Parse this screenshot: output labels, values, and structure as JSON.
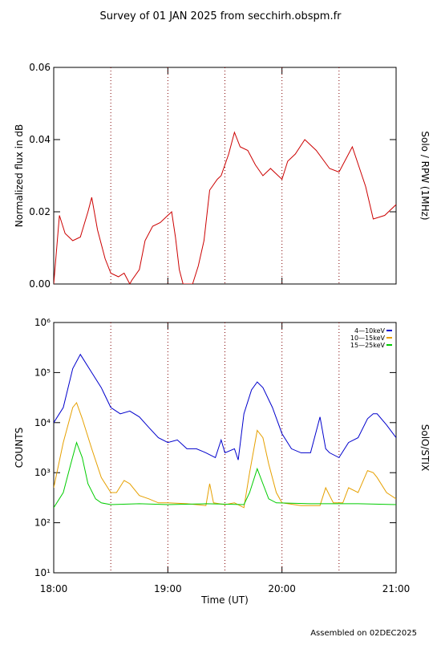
{
  "title": "Survey of 01 JAN 2025 from secchirh.obspm.fr",
  "footer": "Assembled on 02DEC2025",
  "chart_data": [
    {
      "type": "line",
      "ylabel": "Normalized flux in dB",
      "side_label": "Solo / RPW (1MHz)",
      "xlim": [
        "18:00",
        "21:00"
      ],
      "ylim": [
        0,
        0.06
      ],
      "yticks": [
        {
          "value": 0,
          "label": "0.00"
        },
        {
          "value": 0.02,
          "label": "0.02"
        },
        {
          "value": 0.04,
          "label": "0.04"
        },
        {
          "value": 0.06,
          "label": "0.06"
        }
      ],
      "vlines": [
        "18:30",
        "19:00",
        "19:30",
        "20:00",
        "20:30"
      ],
      "series": [
        {
          "color": "#cc0000",
          "x": [
            "18:00",
            "18:03",
            "18:06",
            "18:10",
            "18:14",
            "18:18",
            "18:20",
            "18:23",
            "18:27",
            "18:30",
            "18:34",
            "18:37",
            "18:40",
            "18:41",
            "18:45",
            "18:48",
            "18:52",
            "18:56",
            "19:00",
            "19:02",
            "19:04",
            "19:06",
            "19:08",
            "19:13",
            "19:16",
            "19:19",
            "19:22",
            "19:26",
            "19:28",
            "19:32",
            "19:35",
            "19:38",
            "19:42",
            "19:46",
            "19:50",
            "19:54",
            "19:58",
            "20:00",
            "20:03",
            "20:07",
            "20:12",
            "20:18",
            "20:25",
            "20:30",
            "20:37",
            "20:44",
            "20:48",
            "20:54",
            "21:00"
          ],
          "values": [
            0.0,
            0.019,
            0.014,
            0.012,
            0.013,
            0.02,
            0.024,
            0.015,
            0.007,
            0.003,
            0.002,
            0.003,
            0.0,
            0.001,
            0.004,
            0.012,
            0.016,
            0.017,
            0.019,
            0.02,
            0.013,
            0.004,
            0.0,
            0.0,
            0.005,
            0.012,
            0.026,
            0.029,
            0.03,
            0.036,
            0.042,
            0.038,
            0.037,
            0.033,
            0.03,
            0.032,
            0.03,
            0.029,
            0.034,
            0.036,
            0.04,
            0.037,
            0.032,
            0.031,
            0.038,
            0.027,
            0.018,
            0.019,
            0.022
          ]
        }
      ]
    },
    {
      "type": "line",
      "xlabel": "Time (UT)",
      "ylabel": "COUNTS",
      "side_label": "SolO/STIX",
      "log": true,
      "legend": "upper right",
      "xlim": [
        "18:00",
        "21:00"
      ],
      "xticks": [
        "18:00",
        "19:00",
        "20:00",
        "21:00"
      ],
      "ylim": [
        10,
        1000000
      ],
      "yticks": [
        {
          "value": 10,
          "label": "10¹"
        },
        {
          "value": 100,
          "label": "10²"
        },
        {
          "value": 1000,
          "label": "10³"
        },
        {
          "value": 10000,
          "label": "10⁴"
        },
        {
          "value": 100000,
          "label": "10⁵"
        },
        {
          "value": 1000000,
          "label": "10⁶"
        }
      ],
      "vlines": [
        "18:30",
        "19:00",
        "19:30",
        "20:00",
        "20:30"
      ],
      "series": [
        {
          "name": "4—10keV",
          "color": "#0000cc",
          "x": [
            "18:00",
            "18:05",
            "18:10",
            "18:14",
            "18:20",
            "18:25",
            "18:30",
            "18:35",
            "18:40",
            "18:45",
            "18:50",
            "18:55",
            "19:00",
            "19:05",
            "19:10",
            "19:15",
            "19:20",
            "19:25",
            "19:28",
            "19:30",
            "19:35",
            "19:37",
            "19:40",
            "19:44",
            "19:47",
            "19:50",
            "19:55",
            "20:00",
            "20:05",
            "20:10",
            "20:15",
            "20:20",
            "20:23",
            "20:25",
            "20:30",
            "20:35",
            "20:40",
            "20:45",
            "20:48",
            "20:50",
            "20:55",
            "21:00"
          ],
          "values": [
            10000,
            20000,
            120000,
            230000,
            100000,
            50000,
            20000,
            15000,
            17000,
            13000,
            8000,
            5000,
            4000,
            4500,
            3000,
            3000,
            2500,
            2000,
            4500,
            2500,
            3000,
            1800,
            15000,
            45000,
            65000,
            50000,
            20000,
            6000,
            3000,
            2500,
            2500,
            13000,
            3000,
            2500,
            2000,
            4000,
            5000,
            12000,
            15000,
            15000,
            9000,
            5000
          ]
        },
        {
          "name": "10—15keV",
          "color": "#e6a000",
          "x": [
            "18:00",
            "18:05",
            "18:10",
            "18:12",
            "18:15",
            "18:20",
            "18:25",
            "18:30",
            "18:33",
            "18:37",
            "18:40",
            "18:45",
            "18:50",
            "18:55",
            "19:00",
            "19:10",
            "19:20",
            "19:22",
            "19:24",
            "19:30",
            "19:35",
            "19:40",
            "19:43",
            "19:47",
            "19:50",
            "19:53",
            "19:57",
            "20:00",
            "20:10",
            "20:20",
            "20:23",
            "20:27",
            "20:32",
            "20:35",
            "20:40",
            "20:45",
            "20:48",
            "20:50",
            "20:55",
            "21:00"
          ],
          "values": [
            500,
            4000,
            20000,
            25000,
            12000,
            3000,
            800,
            400,
            400,
            700,
            600,
            350,
            300,
            250,
            250,
            240,
            220,
            600,
            250,
            230,
            250,
            200,
            1000,
            7000,
            5000,
            1500,
            400,
            250,
            220,
            220,
            500,
            250,
            250,
            500,
            400,
            1100,
            1000,
            800,
            400,
            300
          ]
        },
        {
          "name": "15—25keV",
          "color": "#00cc00",
          "x": [
            "18:00",
            "18:05",
            "18:09",
            "18:12",
            "18:15",
            "18:18",
            "18:22",
            "18:25",
            "18:30",
            "18:45",
            "19:00",
            "19:20",
            "19:40",
            "19:43",
            "19:47",
            "19:50",
            "19:53",
            "19:57",
            "20:15",
            "20:40",
            "21:00"
          ],
          "values": [
            200,
            400,
            1500,
            4000,
            2000,
            600,
            300,
            250,
            230,
            240,
            230,
            240,
            230,
            400,
            1200,
            600,
            300,
            250,
            240,
            240,
            230
          ]
        }
      ]
    }
  ]
}
